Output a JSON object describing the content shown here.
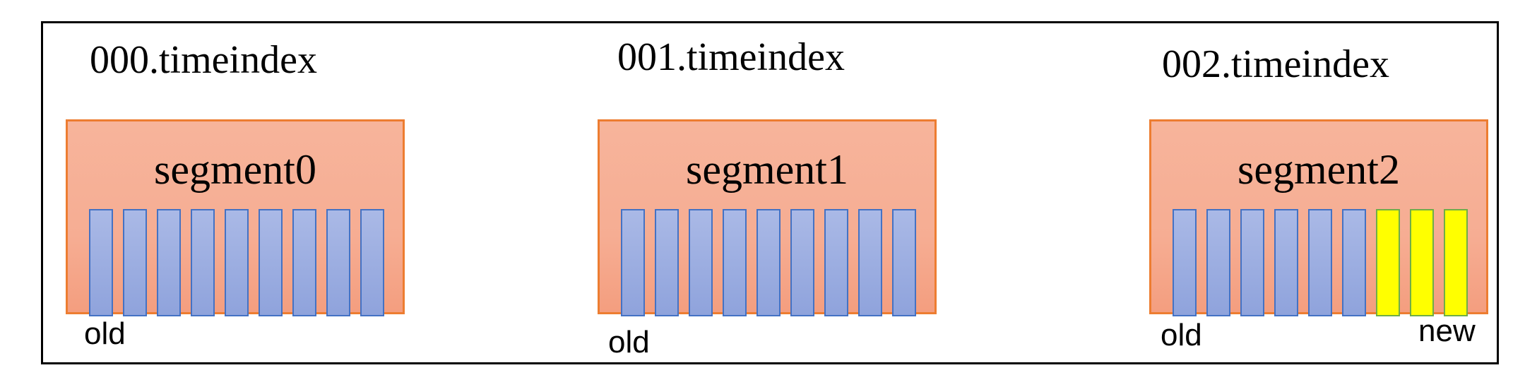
{
  "segments": [
    {
      "file": "000.timeindex",
      "title": "segment0",
      "entries": [
        "old",
        "old",
        "old",
        "old",
        "old",
        "old",
        "old",
        "old",
        "old"
      ],
      "old_label": "old",
      "new_label": ""
    },
    {
      "file": "001.timeindex",
      "title": "segment1",
      "entries": [
        "old",
        "old",
        "old",
        "old",
        "old",
        "old",
        "old",
        "old",
        "old"
      ],
      "old_label": "old",
      "new_label": ""
    },
    {
      "file": "002.timeindex",
      "title": "segment2",
      "entries": [
        "old",
        "old",
        "old",
        "old",
        "old",
        "old",
        "new",
        "new",
        "new"
      ],
      "old_label": "old",
      "new_label": "new"
    }
  ],
  "colors": {
    "segment_fill": "#f6ad93",
    "segment_border": "#ed7d31",
    "old_entry": "#8fa3dc",
    "new_entry": "#ffff00"
  }
}
